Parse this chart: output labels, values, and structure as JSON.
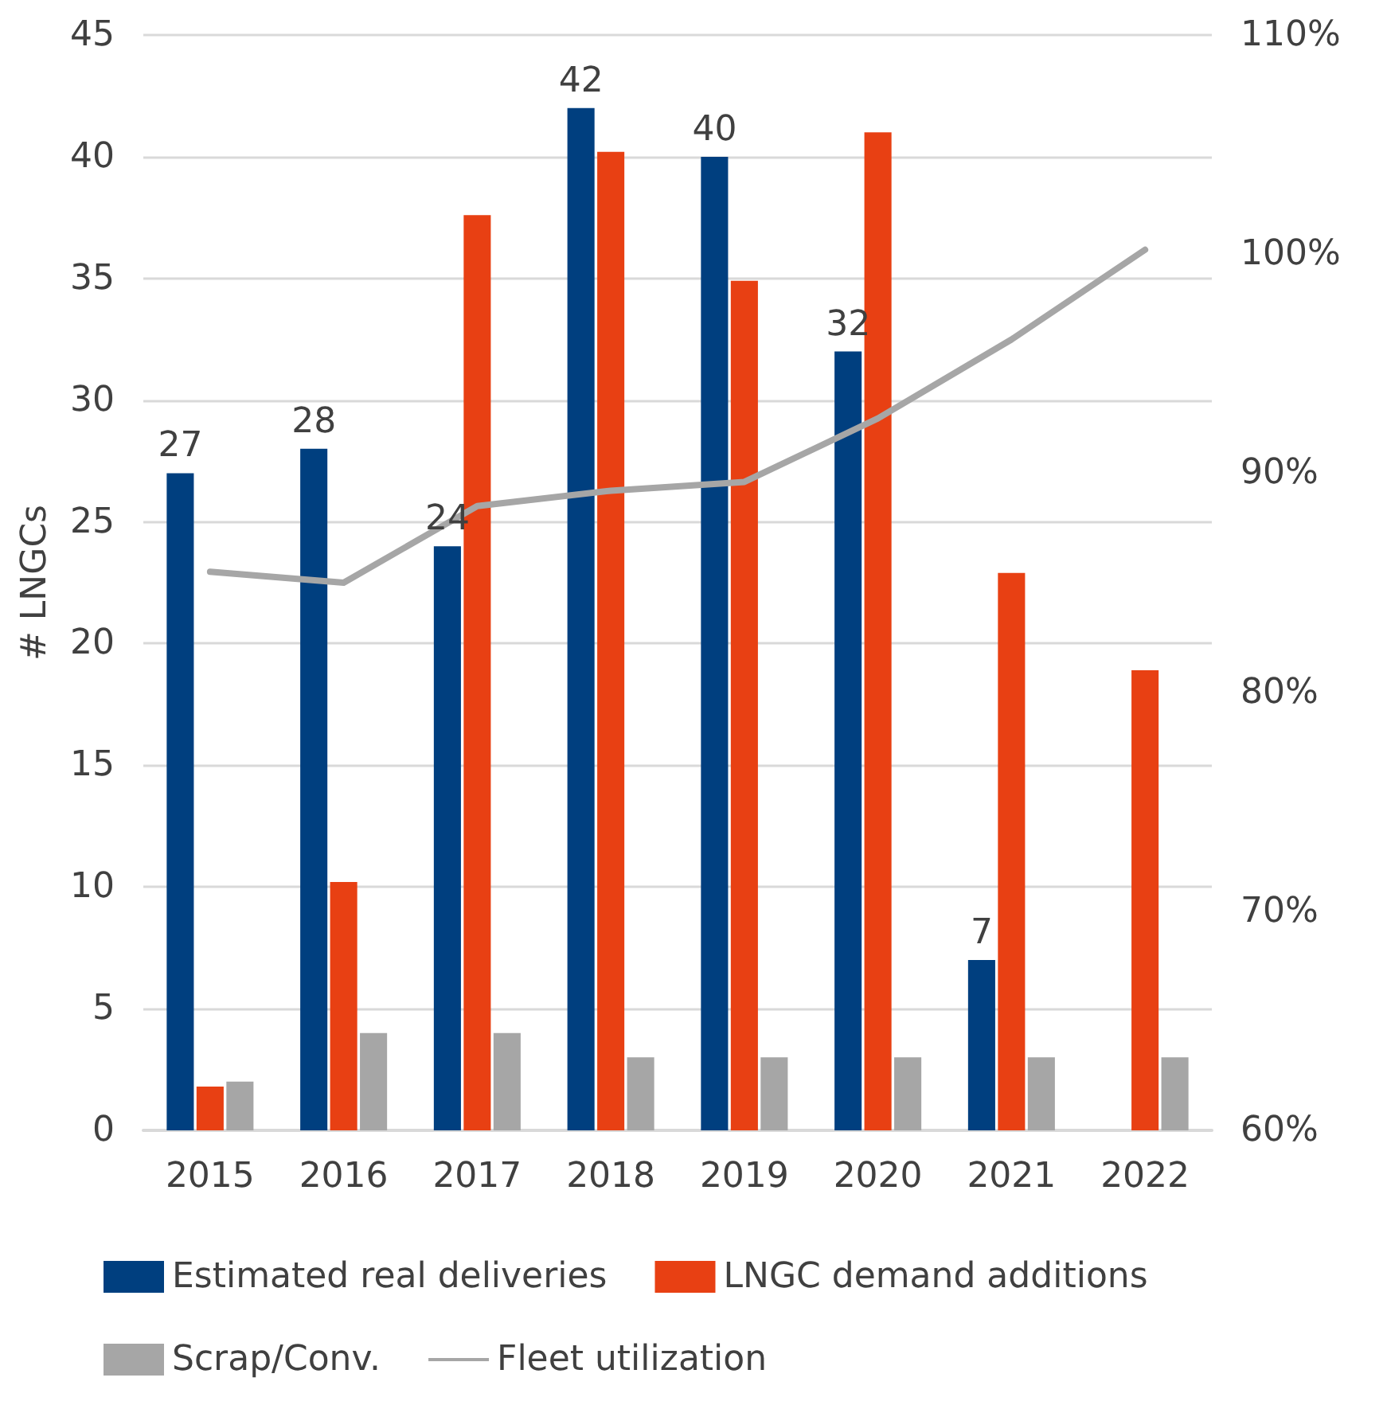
{
  "chart_data": {
    "type": "bar",
    "ylabel": "# LNGCs",
    "categories": [
      "2015",
      "2016",
      "2017",
      "2018",
      "2019",
      "2020",
      "2021",
      "2022"
    ],
    "series": [
      {
        "name": "Estimated real deliveries",
        "color": "#003f7f",
        "values": [
          27,
          28,
          24,
          42,
          40,
          32,
          7,
          null
        ],
        "value_labels": [
          "27",
          "28",
          "24",
          "42",
          "40",
          "32",
          "7",
          null
        ]
      },
      {
        "name": "LNGC demand additions",
        "color": "#e84013",
        "values": [
          1.8,
          10.2,
          37.6,
          40.2,
          34.9,
          41,
          22.9,
          18.9
        ]
      },
      {
        "name": "Scrap/Conv.",
        "color": "#a6a6a6",
        "values": [
          2,
          4,
          4,
          3,
          3,
          3,
          3,
          3
        ]
      },
      {
        "name": "Fleet utilization",
        "type": "line",
        "axis": "y2",
        "color": "#a6a6a6",
        "values": [
          85.5,
          85,
          88.5,
          89.2,
          89.6,
          92.5,
          96.1,
          100.2
        ]
      }
    ],
    "ylim": [
      0,
      45
    ],
    "yticks": [
      0,
      5,
      10,
      15,
      20,
      25,
      30,
      35,
      40,
      45
    ],
    "y2lim": [
      60,
      110
    ],
    "y2ticks": [
      {
        "value": 60,
        "label": "60%"
      },
      {
        "value": 70,
        "label": "70%"
      },
      {
        "value": 80,
        "label": "80%"
      },
      {
        "value": 90,
        "label": "90%"
      },
      {
        "value": 100,
        "label": "100%"
      },
      {
        "value": 110,
        "label": "110%"
      }
    ],
    "grid": "y",
    "legend": "bottom",
    "marker": "none",
    "line_style": "solid"
  }
}
